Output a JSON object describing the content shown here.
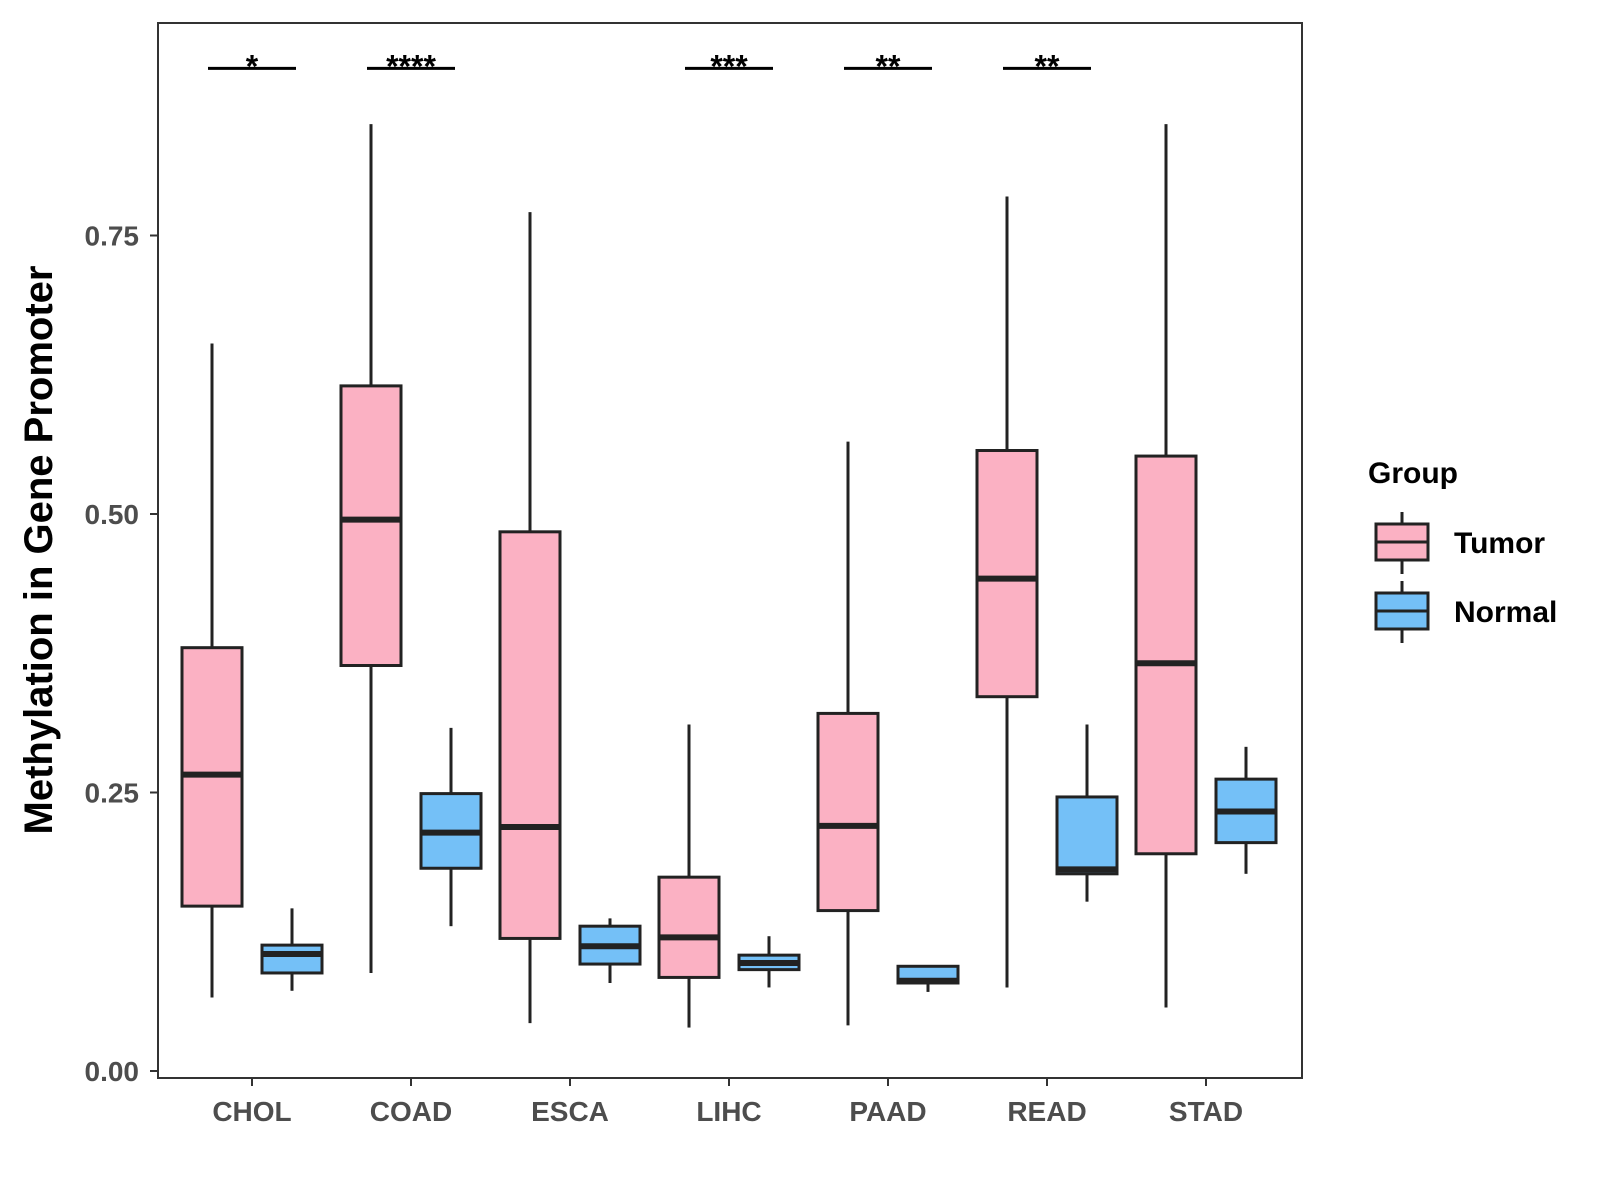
{
  "chart_data": {
    "type": "boxplot",
    "title": "",
    "xlabel": "",
    "ylabel": "Methylation in Gene Promoter",
    "ylim": [
      0,
      0.95
    ],
    "yticks": [
      {
        "value": 0.0,
        "label": "0.00"
      },
      {
        "value": 0.25,
        "label": "0.25"
      },
      {
        "value": 0.5,
        "label": "0.50"
      },
      {
        "value": 0.75,
        "label": "0.75"
      }
    ],
    "categories": [
      "CHOL",
      "COAD",
      "ESCA",
      "LIHC",
      "PAAD",
      "READ",
      "STAD"
    ],
    "legend": {
      "title": "Group",
      "position": "right",
      "entries": [
        {
          "name": "Tumor",
          "color": "#FBB1C3"
        },
        {
          "name": "Normal",
          "color": "#74C0F7"
        }
      ]
    },
    "series": [
      {
        "name": "Tumor",
        "color": "#FBB1C3",
        "boxes": [
          {
            "min": 0.066,
            "q1": 0.148,
            "median": 0.266,
            "q3": 0.38,
            "max": 0.653
          },
          {
            "min": 0.088,
            "q1": 0.364,
            "median": 0.495,
            "q3": 0.615,
            "max": 0.85
          },
          {
            "min": 0.043,
            "q1": 0.119,
            "median": 0.219,
            "q3": 0.484,
            "max": 0.771
          },
          {
            "min": 0.039,
            "q1": 0.084,
            "median": 0.12,
            "q3": 0.174,
            "max": 0.311
          },
          {
            "min": 0.041,
            "q1": 0.144,
            "median": 0.22,
            "q3": 0.321,
            "max": 0.565
          },
          {
            "min": 0.075,
            "q1": 0.336,
            "median": 0.442,
            "q3": 0.557,
            "max": 0.785
          },
          {
            "min": 0.057,
            "q1": 0.195,
            "median": 0.366,
            "q3": 0.552,
            "max": 0.85
          }
        ]
      },
      {
        "name": "Normal",
        "color": "#74C0F7",
        "boxes": [
          {
            "min": 0.072,
            "q1": 0.088,
            "median": 0.105,
            "q3": 0.113,
            "max": 0.146
          },
          {
            "min": 0.13,
            "q1": 0.182,
            "median": 0.214,
            "q3": 0.249,
            "max": 0.308
          },
          {
            "min": 0.079,
            "q1": 0.096,
            "median": 0.112,
            "q3": 0.13,
            "max": 0.137
          },
          {
            "min": 0.075,
            "q1": 0.091,
            "median": 0.097,
            "q3": 0.104,
            "max": 0.121
          },
          {
            "min": 0.071,
            "q1": 0.079,
            "median": 0.081,
            "q3": 0.094,
            "max": 0.094
          },
          {
            "min": 0.152,
            "q1": 0.177,
            "median": 0.181,
            "q3": 0.246,
            "max": 0.311
          },
          {
            "min": 0.177,
            "q1": 0.205,
            "median": 0.233,
            "q3": 0.262,
            "max": 0.291
          }
        ]
      }
    ],
    "significance": [
      {
        "category": "CHOL",
        "label": "*",
        "y": 0.9
      },
      {
        "category": "COAD",
        "label": "****",
        "y": 0.9
      },
      {
        "category": "LIHC",
        "label": "***",
        "y": 0.9
      },
      {
        "category": "PAAD",
        "label": "**",
        "y": 0.9
      },
      {
        "category": "READ",
        "label": "**",
        "y": 0.9
      }
    ]
  }
}
